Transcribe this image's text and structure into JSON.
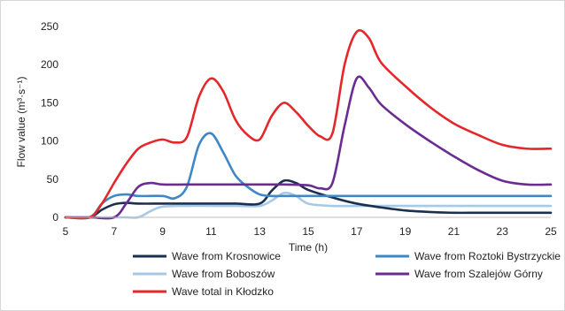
{
  "chart_data": {
    "type": "line",
    "xlabel": "Time (h)",
    "ylabel": "Flow value (m³·s⁻¹)",
    "xlim": [
      5,
      25
    ],
    "ylim": [
      0,
      250
    ],
    "xticks": [
      5,
      7,
      9,
      11,
      13,
      15,
      17,
      19,
      21,
      23,
      25
    ],
    "yticks": [
      0,
      50,
      100,
      150,
      200,
      250
    ],
    "grid": false,
    "legend_position": "bottom",
    "series": [
      {
        "name": "Wave from Krosnowice",
        "color": "#1b2f4e",
        "x": [
          5,
          6,
          6.5,
          7,
          7.5,
          8,
          9,
          10,
          11,
          12,
          13,
          13.5,
          14,
          14.5,
          15,
          16,
          17,
          18,
          19,
          20,
          21,
          22,
          23,
          24,
          25
        ],
        "y": [
          0,
          0,
          10,
          17,
          19,
          18,
          18,
          18,
          18,
          18,
          18,
          35,
          48,
          45,
          36,
          26,
          18,
          13,
          9,
          7,
          6,
          6,
          6,
          6,
          6
        ]
      },
      {
        "name": "Wave from Roztoki Bystrzyckie",
        "color": "#3f87c6",
        "x": [
          5,
          6,
          6.5,
          7,
          7.5,
          8,
          9,
          9.5,
          10,
          10.5,
          11,
          11.5,
          12,
          12.5,
          13,
          13.5,
          14,
          15,
          17,
          19,
          21,
          23,
          25
        ],
        "y": [
          0,
          0,
          18,
          28,
          30,
          28,
          28,
          25,
          40,
          95,
          110,
          85,
          55,
          40,
          30,
          28,
          28,
          28,
          28,
          28,
          28,
          28,
          28
        ]
      },
      {
        "name": "Wave from Boboszów",
        "color": "#a6c9e8",
        "x": [
          5,
          7,
          7.5,
          8,
          8.5,
          9,
          10,
          11,
          12,
          13,
          13.5,
          14,
          14.5,
          15,
          16,
          17,
          19,
          21,
          23,
          25
        ],
        "y": [
          0,
          0,
          0,
          0,
          8,
          14,
          15,
          15,
          15,
          15,
          22,
          32,
          28,
          18,
          15,
          15,
          15,
          15,
          15,
          15
        ]
      },
      {
        "name": "Wave from Szalejów Górny",
        "color": "#6a2c91",
        "x": [
          5,
          6,
          7,
          7.5,
          8,
          8.5,
          9,
          10,
          11,
          12,
          13,
          14,
          15,
          15.5,
          16,
          16.5,
          17,
          17.5,
          18,
          19,
          20,
          21,
          22,
          23,
          24,
          25
        ],
        "y": [
          0,
          0,
          0,
          18,
          40,
          45,
          43,
          43,
          43,
          43,
          43,
          43,
          42,
          38,
          45,
          120,
          182,
          170,
          148,
          122,
          100,
          80,
          62,
          48,
          43,
          43
        ]
      },
      {
        "name": "Wave total in Kłodzko",
        "color": "#e3272b",
        "x": [
          5,
          6,
          6.5,
          7,
          7.5,
          8,
          8.5,
          9,
          9.5,
          10,
          10.5,
          11,
          11.5,
          12,
          12.5,
          13,
          13.5,
          14,
          14.5,
          15,
          15.5,
          16,
          16.5,
          17,
          17.5,
          18,
          19,
          20,
          21,
          22,
          23,
          24,
          25
        ],
        "y": [
          0,
          0,
          18,
          45,
          70,
          90,
          98,
          102,
          98,
          105,
          158,
          182,
          165,
          128,
          108,
          102,
          133,
          150,
          138,
          120,
          106,
          110,
          200,
          243,
          235,
          203,
          172,
          145,
          123,
          108,
          95,
          90,
          90
        ]
      }
    ]
  }
}
